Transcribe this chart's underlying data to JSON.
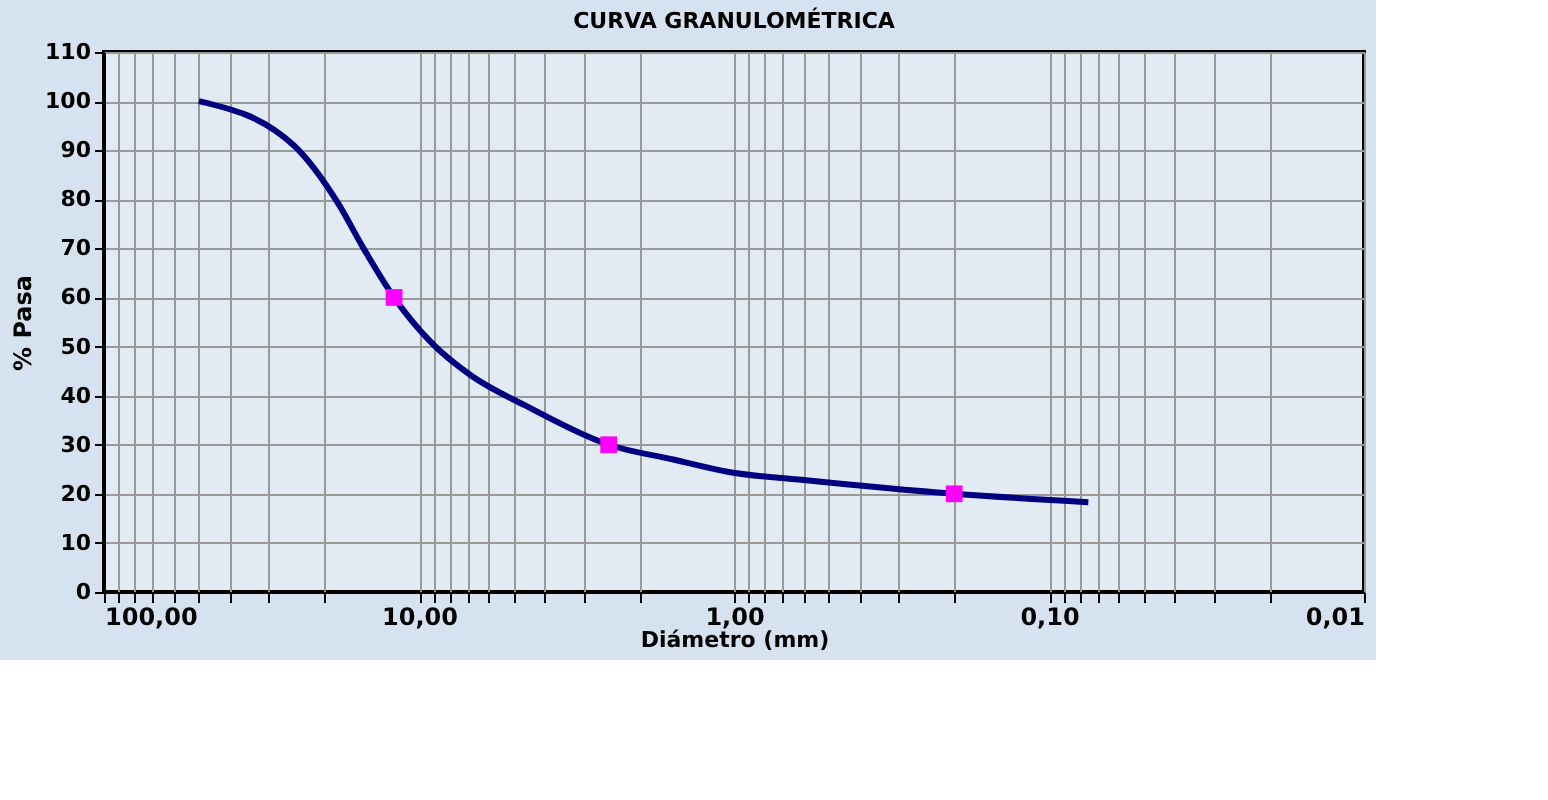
{
  "chart_data": {
    "type": "line",
    "title": "CURVA GRANULOMÉTRICA",
    "xlabel": "Diámetro (mm)",
    "ylabel": "% Pasa",
    "log": "x",
    "grid": true,
    "xlim": [
      100,
      0.01
    ],
    "xticks": [
      {
        "value": 100,
        "label": "100,00"
      },
      {
        "value": 90,
        "label": null
      },
      {
        "value": 80,
        "label": null
      },
      {
        "value": 70,
        "label": null
      },
      {
        "value": 60,
        "label": null
      },
      {
        "value": 50,
        "label": null
      },
      {
        "value": 40,
        "label": null
      },
      {
        "value": 30,
        "label": null
      },
      {
        "value": 20,
        "label": null
      },
      {
        "value": 10,
        "label": "10,00"
      },
      {
        "value": 9,
        "label": null
      },
      {
        "value": 8,
        "label": null
      },
      {
        "value": 7,
        "label": null
      },
      {
        "value": 6,
        "label": null
      },
      {
        "value": 5,
        "label": null
      },
      {
        "value": 4,
        "label": null
      },
      {
        "value": 3,
        "label": null
      },
      {
        "value": 2,
        "label": null
      },
      {
        "value": 1,
        "label": "1,00"
      },
      {
        "value": 0.9,
        "label": null
      },
      {
        "value": 0.8,
        "label": null
      },
      {
        "value": 0.7,
        "label": null
      },
      {
        "value": 0.6,
        "label": null
      },
      {
        "value": 0.5,
        "label": null
      },
      {
        "value": 0.4,
        "label": null
      },
      {
        "value": 0.3,
        "label": null
      },
      {
        "value": 0.2,
        "label": null
      },
      {
        "value": 0.1,
        "label": "0,10"
      },
      {
        "value": 0.09,
        "label": null
      },
      {
        "value": 0.08,
        "label": null
      },
      {
        "value": 0.07,
        "label": null
      },
      {
        "value": 0.06,
        "label": null
      },
      {
        "value": 0.05,
        "label": null
      },
      {
        "value": 0.04,
        "label": null
      },
      {
        "value": 0.03,
        "label": null
      },
      {
        "value": 0.02,
        "label": null
      },
      {
        "value": 0.01,
        "label": "0,01"
      }
    ],
    "ylim": [
      0,
      110
    ],
    "yticks": [
      0,
      10,
      20,
      30,
      40,
      50,
      60,
      70,
      80,
      90,
      100,
      110
    ],
    "series": [
      {
        "color": "#000080",
        "marker": "none",
        "line_style": "solid",
        "x": [
          50,
          25,
          18,
          15,
          12,
          9.2,
          6.8,
          4.6,
          2.5,
          1.56,
          1.05,
          0.58,
          0.2,
          0.075
        ],
        "values": [
          100,
          91,
          79,
          70,
          60,
          51,
          44,
          38,
          30,
          27,
          24.5,
          22.7,
          20,
          18.3
        ]
      },
      {
        "type": "scatter",
        "color": "#ff00ff",
        "marker": "square",
        "x": [
          12,
          2.5,
          0.2
        ],
        "values": [
          60,
          30,
          20
        ]
      }
    ]
  }
}
